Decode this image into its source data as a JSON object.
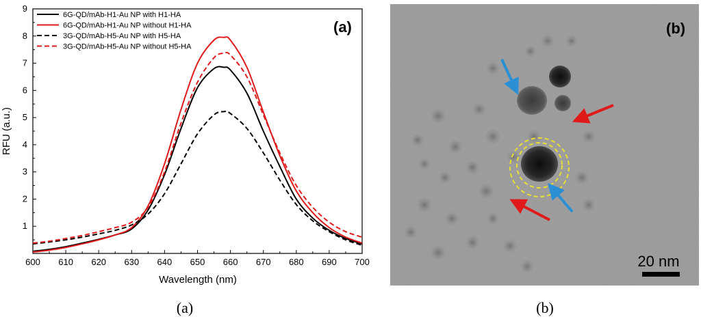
{
  "chart_data": {
    "type": "line",
    "panel_label": "(a)",
    "xlabel": "Wavelength (nm)",
    "ylabel": "RFU (a.u.)",
    "xlim": [
      600,
      700
    ],
    "ylim": [
      0,
      9
    ],
    "x_ticks": [
      600,
      610,
      620,
      630,
      640,
      650,
      660,
      670,
      680,
      690,
      700
    ],
    "y_ticks": [
      1,
      2,
      3,
      4,
      5,
      6,
      7,
      8,
      9
    ],
    "x": [
      600,
      605,
      610,
      615,
      620,
      625,
      630,
      635,
      640,
      645,
      650,
      655,
      658,
      660,
      665,
      670,
      675,
      680,
      685,
      690,
      695,
      700
    ],
    "series": [
      {
        "name": "6G-QD/mAb-H1-Au NP with H1-HA",
        "color": "#000000",
        "dash": "solid",
        "values": [
          0.08,
          0.15,
          0.25,
          0.38,
          0.52,
          0.68,
          0.9,
          1.6,
          2.9,
          4.6,
          6.1,
          6.8,
          6.85,
          6.75,
          5.9,
          4.5,
          3.2,
          2.0,
          1.3,
          0.85,
          0.55,
          0.35
        ]
      },
      {
        "name": "6G-QD/mAb-H1-Au NP without H1-HA",
        "color": "#e01a1a",
        "dash": "solid",
        "values": [
          0.05,
          0.12,
          0.22,
          0.35,
          0.5,
          0.68,
          0.95,
          1.75,
          3.3,
          5.3,
          7.0,
          7.85,
          7.95,
          7.85,
          6.85,
          5.2,
          3.6,
          2.3,
          1.5,
          0.95,
          0.6,
          0.38
        ]
      },
      {
        "name": "3G-QD/mAb-H5-Au NP with H5-HA",
        "color": "#000000",
        "dash": "dashed",
        "values": [
          0.35,
          0.42,
          0.5,
          0.6,
          0.72,
          0.85,
          1.05,
          1.45,
          2.2,
          3.3,
          4.4,
          5.1,
          5.22,
          5.15,
          4.6,
          3.7,
          2.7,
          1.8,
          1.2,
          0.8,
          0.5,
          0.3
        ]
      },
      {
        "name": "3G-QD/mAb-H5-Au NP without H5-HA",
        "color": "#e01a1a",
        "dash": "dashed",
        "values": [
          0.38,
          0.45,
          0.55,
          0.66,
          0.8,
          0.95,
          1.15,
          1.7,
          3.0,
          4.8,
          6.3,
          7.2,
          7.37,
          7.3,
          6.5,
          5.1,
          3.7,
          2.5,
          1.7,
          1.15,
          0.8,
          0.6
        ]
      }
    ]
  },
  "micrograph": {
    "panel_label": "(b)",
    "scale_bar_label": "20 nm"
  },
  "captions": {
    "a": "(a)",
    "b": "(b)"
  }
}
